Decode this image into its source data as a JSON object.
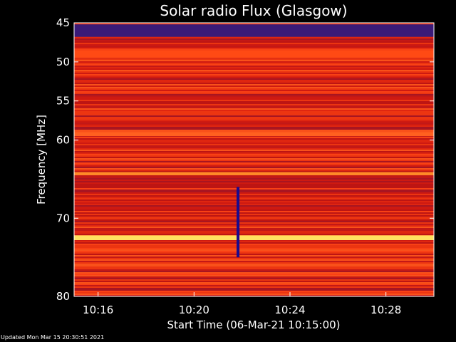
{
  "chart_data": {
    "type": "heatmap",
    "title": "Solar radio Flux (Glasgow)",
    "xlabel": "Start Time (06-Mar-21 10:15:00)",
    "ylabel": "Frequency [MHz]",
    "x_ticks": [
      "10:16",
      "10:20",
      "10:24",
      "10:28"
    ],
    "y_ticks": [
      "45",
      "50",
      "55",
      "60",
      "70",
      "80"
    ],
    "xlim": [
      "10:15:00",
      "10:30:00"
    ],
    "ylim": [
      45,
      80
    ],
    "y_axis_inverted": true,
    "colormap": [
      "#1a0a6e",
      "#6a0a3c",
      "#b01818",
      "#e02010",
      "#ff3a10",
      "#ff7a18",
      "#ffb000",
      "#fff0a0"
    ],
    "features": [
      {
        "kind": "band",
        "freq_mhz": [
          45.2,
          46.8
        ],
        "level": "low",
        "color": "#3a1a78"
      },
      {
        "kind": "band",
        "freq_mhz": [
          48.5,
          49.5
        ],
        "level": "mid",
        "color": "#ff4a14"
      },
      {
        "kind": "band",
        "freq_mhz": [
          59.0,
          59.5
        ],
        "level": "mid",
        "color": "#ff6020"
      },
      {
        "kind": "band",
        "freq_mhz": [
          64.1,
          64.5
        ],
        "level": "high",
        "color": "#ff8a28"
      },
      {
        "kind": "band",
        "freq_mhz": [
          72.2,
          72.8
        ],
        "level": "very high",
        "color": "#ffe060"
      },
      {
        "kind": "burst",
        "time": "10:21:50",
        "freq_mhz": [
          66,
          75
        ],
        "color": "#1a0a8e"
      }
    ]
  },
  "footer": {
    "updated": "Updated Mon Mar 15 20:30:51 2021"
  }
}
